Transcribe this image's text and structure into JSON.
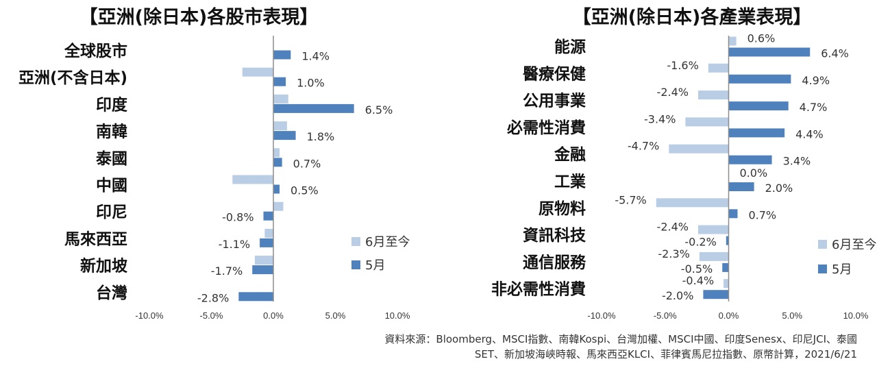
{
  "colors": {
    "june": "#b9cde5",
    "may": "#4f81bd",
    "axis": "#8c8c8c"
  },
  "source_line1": "資料來源：Bloomberg、MSCI指數、南韓Kospi、台灣加權、MSCI中國、印度Senesx、印尼JCI、泰國",
  "source_line2": "SET、新加坡海峽時報、馬來西亞KLCI、菲律賓馬尼拉指數、原幣計算，2021/6/21",
  "chart_data": [
    {
      "type": "bar",
      "orientation": "horizontal",
      "title": "【亞洲(除日本)各股市表現】",
      "categories": [
        "全球股市",
        "亞洲(不含日本)",
        "印度",
        "南韓",
        "泰國",
        "中國",
        "印尼",
        "馬來西亞",
        "新加坡",
        "台灣"
      ],
      "series": [
        {
          "name": "6月至今",
          "values": [
            null,
            -2.5,
            1.2,
            1.1,
            0.5,
            -3.3,
            0.8,
            -0.7,
            -1.5,
            null
          ],
          "labels": []
        },
        {
          "name": "5月",
          "values": [
            1.4,
            1.0,
            6.5,
            1.8,
            0.7,
            0.5,
            -0.8,
            -1.1,
            -1.7,
            -2.8
          ],
          "labels": [
            "1.4%",
            "1.0%",
            "6.5%",
            "1.8%",
            "0.7%",
            "0.5%",
            "-0.8%",
            "-1.1%",
            "-1.7%",
            "-2.8%"
          ]
        }
      ],
      "xlim": [
        -10,
        10
      ],
      "ticks": [
        "-10.0%",
        "-5.0%",
        "0.0%",
        "5.0%",
        "10.0%"
      ],
      "legend": [
        "6月至今",
        "5月"
      ],
      "legend_position": "right"
    },
    {
      "type": "bar",
      "orientation": "horizontal",
      "title": "【亞洲(除日本)各產業表現】",
      "categories": [
        "能源",
        "醫療保健",
        "公用事業",
        "必需性消費",
        "金融",
        "工業",
        "原物料",
        "資訊科技",
        "通信服務",
        "非必需性消費"
      ],
      "series": [
        {
          "name": "6月至今",
          "values": [
            0.6,
            -1.6,
            -2.4,
            -3.4,
            -4.7,
            0.0,
            -5.7,
            -2.4,
            -2.3,
            -0.4
          ],
          "labels": [
            "0.6%",
            "-1.6%",
            "-2.4%",
            "-3.4%",
            "-4.7%",
            "0.0%",
            "-5.7%",
            "-2.4%",
            "-2.3%",
            "-0.4%"
          ]
        },
        {
          "name": "5月",
          "values": [
            6.4,
            4.9,
            4.7,
            4.4,
            3.4,
            2.0,
            0.7,
            -0.2,
            -0.5,
            -2.0
          ],
          "labels": [
            "6.4%",
            "4.9%",
            "4.7%",
            "4.4%",
            "3.4%",
            "2.0%",
            "0.7%",
            "-0.2%",
            "-0.5%",
            "-2.0%"
          ]
        }
      ],
      "xlim": [
        -10,
        10
      ],
      "ticks": [
        "-10.0%",
        "-5.0%",
        "0.0%",
        "5.0%",
        "10.0%"
      ],
      "legend": [
        "6月至今",
        "5月"
      ],
      "legend_position": "right"
    }
  ]
}
